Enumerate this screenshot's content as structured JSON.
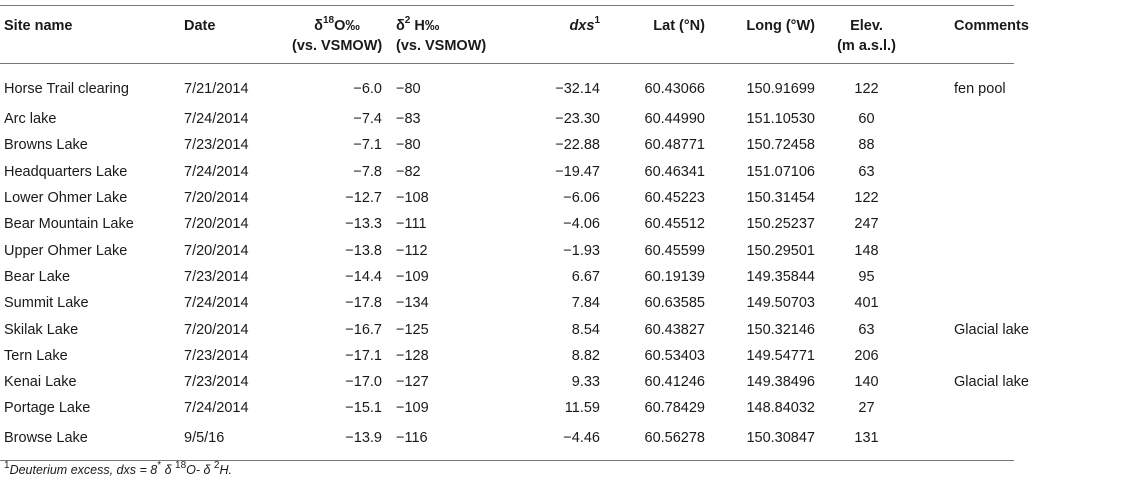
{
  "headers": {
    "site": "Site name",
    "date": "Date",
    "d18o_a": "δ",
    "d18o_sup": "18",
    "d18o_b": "O‰",
    "d18o_line2": "(vs. VSMOW)",
    "d2h_a": "δ",
    "d2h_sup": "2",
    "d2h_b": " H‰",
    "d2h_line2": "(vs. VSMOW)",
    "dxs": "dxs",
    "dxs_sup": "1",
    "lat": "Lat (°N)",
    "long": "Long (°W)",
    "elev": "Elev.",
    "elev_line2": "(m a.s.l.)",
    "comments": "Comments"
  },
  "rows": [
    {
      "site": "Horse Trail clearing",
      "date": "7/21/2014",
      "d18o": "−6.0",
      "d2h": "−80",
      "dxs": "−32.14",
      "lat": "60.43066",
      "long": "150.91699",
      "elev": "122",
      "comments": "fen pool"
    },
    {
      "site": "Arc lake",
      "date": "7/24/2014",
      "d18o": "−7.4",
      "d2h": "−83",
      "dxs": "−23.30",
      "lat": "60.44990",
      "long": "151.10530",
      "elev": "60",
      "comments": ""
    },
    {
      "site": "Browns Lake",
      "date": "7/23/2014",
      "d18o": "−7.1",
      "d2h": "−80",
      "dxs": "−22.88",
      "lat": "60.48771",
      "long": "150.72458",
      "elev": "88",
      "comments": ""
    },
    {
      "site": "Headquarters Lake",
      "date": "7/24/2014",
      "d18o": "−7.8",
      "d2h": "−82",
      "dxs": "−19.47",
      "lat": "60.46341",
      "long": "151.07106",
      "elev": "63",
      "comments": ""
    },
    {
      "site": "Lower Ohmer Lake",
      "date": "7/20/2014",
      "d18o": "−12.7",
      "d2h": "−108",
      "dxs": "−6.06",
      "lat": "60.45223",
      "long": "150.31454",
      "elev": "122",
      "comments": ""
    },
    {
      "site": "Bear Mountain Lake",
      "date": "7/20/2014",
      "d18o": "−13.3",
      "d2h": "−111",
      "dxs": "−4.06",
      "lat": "60.45512",
      "long": "150.25237",
      "elev": "247",
      "comments": ""
    },
    {
      "site": "Upper Ohmer Lake",
      "date": "7/20/2014",
      "d18o": "−13.8",
      "d2h": "−112",
      "dxs": "−1.93",
      "lat": "60.45599",
      "long": "150.29501",
      "elev": "148",
      "comments": ""
    },
    {
      "site": "Bear Lake",
      "date": "7/23/2014",
      "d18o": "−14.4",
      "d2h": "−109",
      "dxs": "6.67",
      "lat": "60.19139",
      "long": "149.35844",
      "elev": "95",
      "comments": ""
    },
    {
      "site": "Summit Lake",
      "date": "7/24/2014",
      "d18o": "−17.8",
      "d2h": "−134",
      "dxs": "7.84",
      "lat": "60.63585",
      "long": "149.50703",
      "elev": "401",
      "comments": ""
    },
    {
      "site": "Skilak Lake",
      "date": "7/20/2014",
      "d18o": "−16.7",
      "d2h": "−125",
      "dxs": "8.54",
      "lat": "60.43827",
      "long": "150.32146",
      "elev": "63",
      "comments": "Glacial lake"
    },
    {
      "site": "Tern Lake",
      "date": "7/23/2014",
      "d18o": "−17.1",
      "d2h": "−128",
      "dxs": "8.82",
      "lat": "60.53403",
      "long": "149.54771",
      "elev": "206",
      "comments": ""
    },
    {
      "site": "Kenai Lake",
      "date": "7/23/2014",
      "d18o": "−17.0",
      "d2h": "−127",
      "dxs": "9.33",
      "lat": "60.41246",
      "long": "149.38496",
      "elev": "140",
      "comments": "Glacial lake"
    },
    {
      "site": "Portage Lake",
      "date": "7/24/2014",
      "d18o": "−15.1",
      "d2h": "−109",
      "dxs": "11.59",
      "lat": "60.78429",
      "long": "148.84032",
      "elev": "27",
      "comments": ""
    },
    {
      "site": "Browse Lake",
      "date": "9/5/16",
      "d18o": "−13.9",
      "d2h": "−116",
      "dxs": "−4.46",
      "lat": "60.56278",
      "long": "150.30847",
      "elev": "131",
      "comments": ""
    }
  ],
  "footnote": {
    "sup": "1",
    "part1": "Deuterium excess, dxs = 8",
    "star": "*",
    "part2": " δ ",
    "sup18": "18",
    "part3": "O- δ ",
    "sup2": "2",
    "part4": "H."
  }
}
